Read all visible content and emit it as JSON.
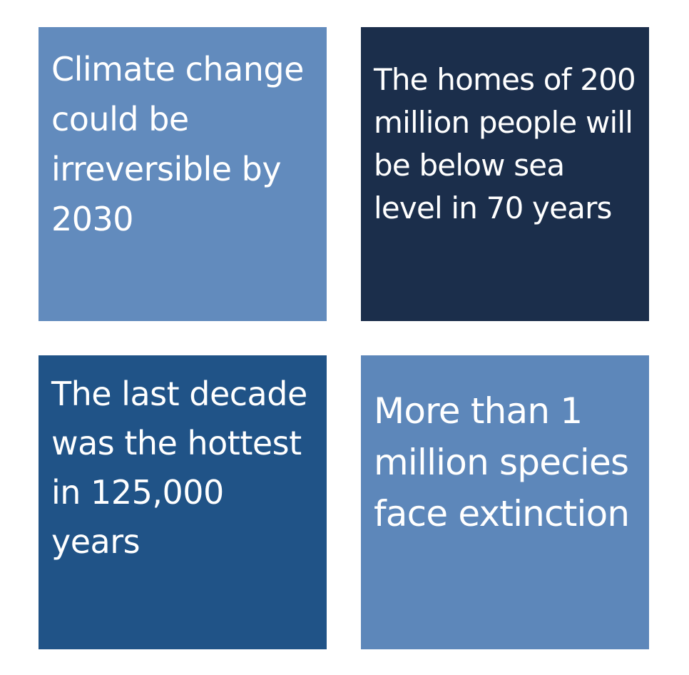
{
  "cards": [
    {
      "text": "Climate change could be irreversible by 2030",
      "color": "#628BBD"
    },
    {
      "text": "The homes of 200 million people will be below sea level in 70 years",
      "color": "#1B2E4B"
    },
    {
      "text": "The last decade was the hottest in 125,000 years",
      "color": "#205387"
    },
    {
      "text": "More than 1 million species face extinction",
      "color": "#5D87BA"
    }
  ]
}
